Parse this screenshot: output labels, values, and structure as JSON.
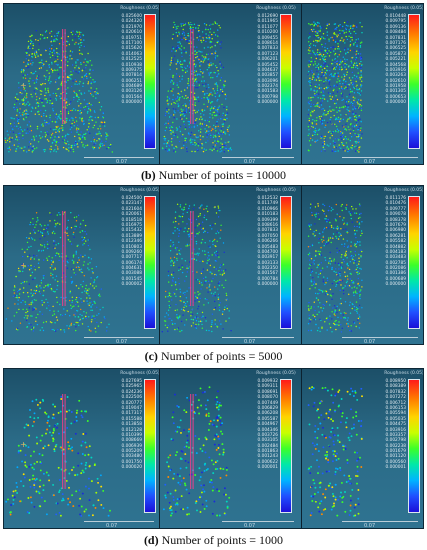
{
  "legend_title": "Roughness (0.05)",
  "scale_label": "0.07",
  "crosshair_glyph": "+",
  "rows": [
    {
      "caption_letter": "(b)",
      "caption_text": "Number of points = 10000",
      "density": 1.0,
      "legends": [
        [
          "0.025600",
          "0.024320",
          "0.021970",
          "0.020610",
          "0.019751",
          "0.017100",
          "0.015620",
          "0.014063",
          "0.012525",
          "0.010938",
          "0.009375",
          "0.007814",
          "0.006251",
          "0.004689",
          "0.003126",
          "0.001564",
          "0.000000"
        ],
        [
          "0.012690",
          "0.011965",
          "0.011077",
          "0.010200",
          "0.009455",
          "0.008614",
          "0.007833",
          "0.007123",
          "0.006201",
          "0.005452",
          "0.004637",
          "0.003857",
          "0.003096",
          "0.002374",
          "0.001583",
          "0.000798",
          "0.000000"
        ],
        [
          "0.010448",
          "0.009795",
          "0.009136",
          "0.008484",
          "0.007831",
          "0.007176",
          "0.006525",
          "0.005873",
          "0.005221",
          "0.004568",
          "0.003916",
          "0.003263",
          "0.002610",
          "0.001958",
          "0.001305",
          "0.000653",
          "0.000000"
        ]
      ]
    },
    {
      "caption_letter": "(c)",
      "caption_text": "Number of points = 5000",
      "density": 0.6,
      "legends": [
        [
          "0.024500",
          "0.023147",
          "0.021604",
          "0.020061",
          "0.018518",
          "0.016975",
          "0.015432",
          "0.013889",
          "0.012346",
          "0.010803",
          "0.009260",
          "0.007717",
          "0.006174",
          "0.004631",
          "0.003088",
          "0.001545",
          "0.000002"
        ],
        [
          "0.012532",
          "0.011749",
          "0.010966",
          "0.010183",
          "0.009399",
          "0.008616",
          "0.007833",
          "0.007050",
          "0.006266",
          "0.005483",
          "0.004700",
          "0.003917",
          "0.003133",
          "0.002350",
          "0.001567",
          "0.000784",
          "0.000000"
        ],
        [
          "0.011176",
          "0.010476",
          "0.009777",
          "0.009078",
          "0.008378",
          "0.007679",
          "0.006980",
          "0.006281",
          "0.005582",
          "0.004882",
          "0.004183",
          "0.003483",
          "0.002785",
          "0.002086",
          "0.001386",
          "0.000689",
          "0.000000"
        ]
      ]
    },
    {
      "caption_letter": "(d)",
      "caption_text": "Number of points = 1000",
      "density": 0.28,
      "legends": [
        [
          "0.027695",
          "0.025965",
          "0.024236",
          "0.022506",
          "0.020777",
          "0.019047",
          "0.017317",
          "0.015588",
          "0.013858",
          "0.012128",
          "0.010399",
          "0.008669",
          "0.006939",
          "0.005209",
          "0.003480",
          "0.001750",
          "0.000020"
        ],
        [
          "0.009932",
          "0.009311",
          "0.008691",
          "0.008070",
          "0.007449",
          "0.006829",
          "0.006208",
          "0.005587",
          "0.004967",
          "0.004346",
          "0.003726",
          "0.003105",
          "0.002484",
          "0.001863",
          "0.001243",
          "0.000622",
          "0.000001"
        ],
        [
          "0.008950",
          "0.008389",
          "0.007832",
          "0.007272",
          "0.006712",
          "0.006153",
          "0.005594",
          "0.005035",
          "0.004475",
          "0.003916",
          "0.003357",
          "0.002798",
          "0.002238",
          "0.001679",
          "0.001120",
          "0.000560",
          "0.000001"
        ]
      ]
    }
  ]
}
